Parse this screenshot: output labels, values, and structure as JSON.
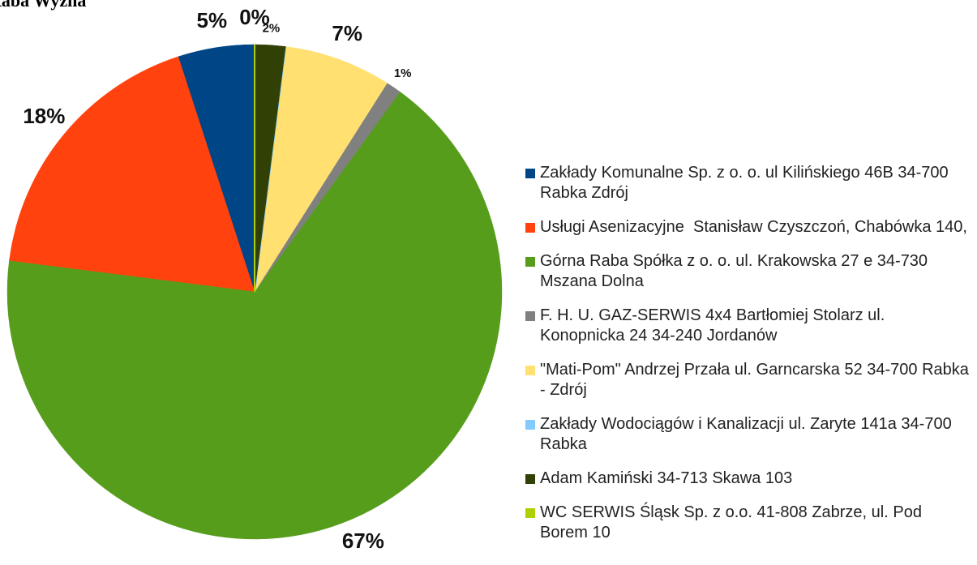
{
  "chart_data": {
    "type": "pie",
    "title": "Raba Wyżna",
    "categories": [
      "Zakłady Komunalne Sp. z o. o. ul Kilińskiego 46B 34-700 Rabka Zdrój",
      "Usługi Asenizacyjne  Stanisław Czyszczoń, Chabówka 140,",
      "Górna Raba Spółka z o. o. ul. Krakowska 27 e 34-730 Mszana Dolna",
      "F. H. U. GAZ-SERWIS 4x4 Bartłomiej Stolarz ul. Konopnicka 24 34-240 Jordanów",
      "\"Mati-Pom\" Andrzej Przała ul. Garncarska 52 34-700 Rabka - Zdrój",
      "Zakłady Wodociągów i Kanalizacji ul. Zaryte 141a 34-700 Rabka",
      "Adam Kamiński 34-713 Skawa 103",
      "WC SERWIS Śląsk Sp. z o.o. 41-808 Zabrze, ul. Pod Borem 10"
    ],
    "values": [
      5,
      18,
      67,
      1,
      7,
      0,
      2,
      0
    ],
    "value_labels": [
      "5%",
      "18%",
      "67%",
      "1%",
      "7%",
      null,
      "2%",
      "0%"
    ],
    "colors": [
      "#004586",
      "#ff420e",
      "#579d1c",
      "#808080",
      "#ffe070",
      "#83caff",
      "#314004",
      "#aecf00"
    ],
    "legend": "right"
  }
}
